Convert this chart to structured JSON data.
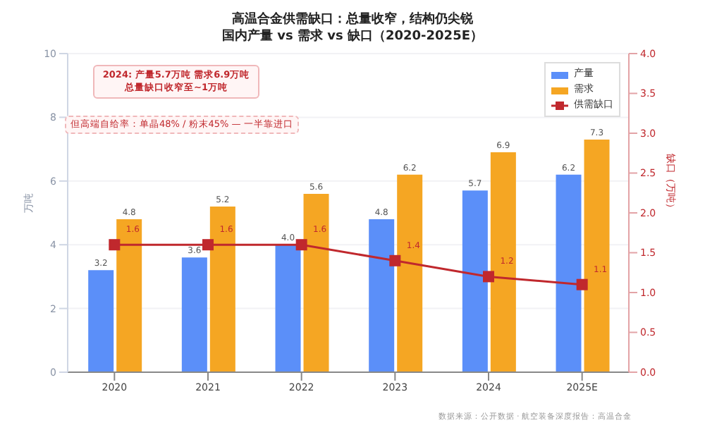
{
  "chart_data": {
    "type": "bar",
    "title": "高温合金供需缺口：总量收窄，结构仍尖锐",
    "subtitle": "国内产量 vs 需求 vs 缺口（2020-2025E）",
    "ylabel": "万吨",
    "y2label": "缺口（万吨）",
    "categories": [
      "2020",
      "2021",
      "2022",
      "2023",
      "2024",
      "2025E"
    ],
    "series": [
      {
        "name": "产量",
        "color": "#5b8ff9",
        "values": [
          3.2,
          3.6,
          4.0,
          4.8,
          5.7,
          6.2
        ],
        "value_labels": [
          "3.2",
          "3.6",
          "4.0",
          "4.8",
          "5.7",
          "6.2"
        ]
      },
      {
        "name": "需求",
        "color": "#f5a623",
        "values": [
          4.8,
          5.2,
          5.6,
          6.2,
          6.9,
          7.3
        ],
        "value_labels": [
          "4.8",
          "5.2",
          "5.6",
          "6.2",
          "6.9",
          "7.3"
        ]
      },
      {
        "name": "供需缺口",
        "type": "line",
        "axis": "y2",
        "color": "#c0282d",
        "marker": "square",
        "values": [
          1.6,
          1.6,
          1.6,
          1.4,
          1.2,
          1.1
        ],
        "value_labels": [
          "1.6",
          "1.6",
          "1.6",
          "1.4",
          "1.2",
          "1.1"
        ]
      }
    ],
    "ylim": [
      0,
      10
    ],
    "yticks": [
      0,
      2,
      4,
      6,
      8,
      10
    ],
    "y2lim": [
      0,
      4
    ],
    "y2ticks": [
      {
        "value": 0,
        "label": "0.0"
      },
      0.5,
      {
        "value": 1,
        "label": "1.0"
      },
      1.5,
      {
        "value": 2,
        "label": "2.0"
      },
      2.5,
      {
        "value": 3,
        "label": "3.0"
      },
      3.5,
      {
        "value": 4,
        "label": "4.0"
      }
    ],
    "grid": "y",
    "legend": "top right",
    "annotations": [
      "2024: 产量5.7万吨 需求6.9万吨总量缺口收窄至~1万吨",
      "但高端自给率：单晶48% / 粉末45% — 一半靠进口",
      "数据来源：公开数据 · 航空装备深度报告：高温合金"
    ]
  }
}
